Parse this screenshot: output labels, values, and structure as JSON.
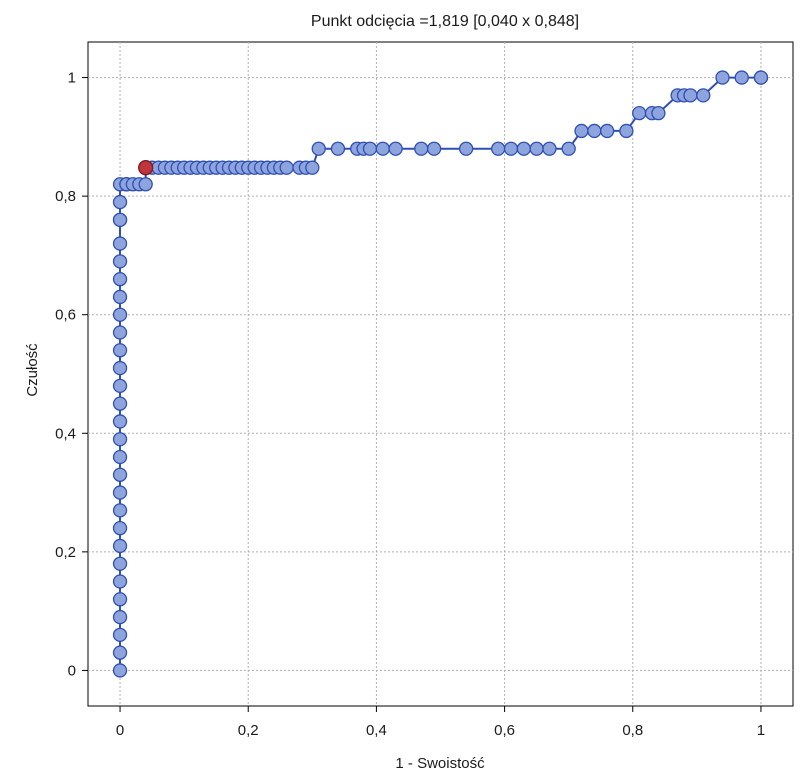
{
  "chart_data": {
    "type": "line",
    "title": "Punkt odcięcia =1,819 [0,040 x 0,848]",
    "xlabel": "1 - Swoistość",
    "ylabel": "Czułość",
    "xlim": [
      -0.05,
      1.05
    ],
    "ylim": [
      -0.06,
      1.06
    ],
    "xticks": [
      0,
      0.2,
      0.4,
      0.6,
      0.8,
      1
    ],
    "xtick_labels": [
      "0",
      "0,2",
      "0,4",
      "0,6",
      "0,8",
      "1"
    ],
    "yticks": [
      0,
      0.2,
      0.4,
      0.6,
      0.8,
      1
    ],
    "ytick_labels": [
      "0",
      "0,2",
      "0,4",
      "0,6",
      "0,8",
      "1"
    ],
    "grid": true,
    "series": [
      {
        "color": "#2f4fb5",
        "marker_color": "#8ea4dd",
        "x": [
          0,
          0,
          0,
          0,
          0,
          0,
          0,
          0,
          0,
          0,
          0,
          0,
          0,
          0,
          0,
          0,
          0,
          0,
          0,
          0,
          0,
          0,
          0,
          0,
          0,
          0,
          0,
          0,
          0,
          0.01,
          0.01,
          0.01,
          0.02,
          0.03,
          0.04,
          0.04,
          0.05,
          0.06,
          0.07,
          0.08,
          0.09,
          0.1,
          0.11,
          0.12,
          0.13,
          0.14,
          0.15,
          0.16,
          0.17,
          0.18,
          0.19,
          0.2,
          0.21,
          0.22,
          0.23,
          0.24,
          0.25,
          0.26,
          0.28,
          0.29,
          0.3,
          0.31,
          0.34,
          0.37,
          0.38,
          0.39,
          0.41,
          0.43,
          0.47,
          0.49,
          0.54,
          0.59,
          0.61,
          0.63,
          0.65,
          0.67,
          0.7,
          0.72,
          0.74,
          0.76,
          0.79,
          0.81,
          0.83,
          0.84,
          0.87,
          0.88,
          0.89,
          0.91,
          0.94,
          0.97,
          1.0,
          1.0
        ],
        "y": [
          0,
          0.03,
          0.06,
          0.09,
          0.12,
          0.15,
          0.18,
          0.21,
          0.24,
          0.27,
          0.3,
          0.33,
          0.36,
          0.39,
          0.42,
          0.45,
          0.48,
          0.51,
          0.54,
          0.57,
          0.6,
          0.63,
          0.66,
          0.69,
          0.72,
          0.76,
          0.76,
          0.79,
          0.82,
          0.82,
          0.82,
          0.82,
          0.82,
          0.82,
          0.82,
          0.848,
          0.848,
          0.848,
          0.848,
          0.848,
          0.848,
          0.848,
          0.848,
          0.848,
          0.848,
          0.848,
          0.848,
          0.848,
          0.848,
          0.848,
          0.848,
          0.848,
          0.848,
          0.848,
          0.848,
          0.848,
          0.848,
          0.848,
          0.848,
          0.848,
          0.848,
          0.88,
          0.88,
          0.88,
          0.88,
          0.88,
          0.88,
          0.88,
          0.88,
          0.88,
          0.88,
          0.88,
          0.88,
          0.88,
          0.88,
          0.88,
          0.88,
          0.91,
          0.91,
          0.91,
          0.91,
          0.94,
          0.94,
          0.94,
          0.97,
          0.97,
          0.97,
          0.97,
          1.0,
          1.0,
          1.0,
          1.0
        ]
      }
    ],
    "highlight_point": {
      "x": 0.04,
      "y": 0.848,
      "color": "#c0343c"
    }
  }
}
